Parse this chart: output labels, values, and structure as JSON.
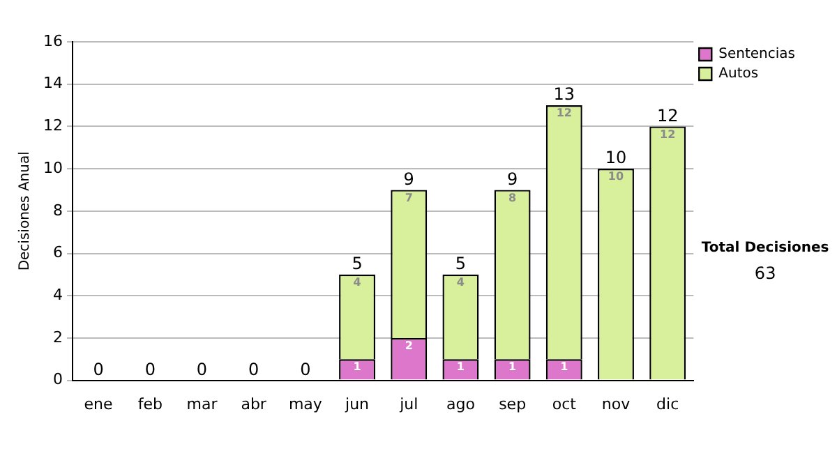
{
  "chart_data": {
    "type": "bar",
    "stacked": true,
    "ylabel": "Decisiones Anual",
    "categories": [
      "ene",
      "feb",
      "mar",
      "abr",
      "may",
      "jun",
      "jul",
      "ago",
      "sep",
      "oct",
      "nov",
      "dic"
    ],
    "series": [
      {
        "name": "Sentencias",
        "color": "#dd77cc",
        "values": [
          0,
          0,
          0,
          0,
          0,
          1,
          2,
          1,
          1,
          1,
          0,
          0
        ],
        "value_labels": [
          null,
          null,
          null,
          null,
          null,
          "1",
          "2",
          "1",
          "1",
          "1",
          null,
          null
        ]
      },
      {
        "name": "Autos",
        "color": "#d8ef9c",
        "values": [
          0,
          0,
          0,
          0,
          0,
          4,
          7,
          4,
          8,
          12,
          10,
          12
        ],
        "value_labels": [
          null,
          null,
          null,
          null,
          null,
          "4",
          "7",
          "4",
          "8",
          "12",
          "10",
          "12"
        ]
      }
    ],
    "totals": [
      "0",
      "0",
      "0",
      "0",
      "0",
      "5",
      "9",
      "5",
      "9",
      "13",
      "10",
      "12"
    ],
    "ylim": [
      0,
      16
    ],
    "yticks": [
      0,
      2,
      4,
      6,
      8,
      10,
      12,
      14,
      16
    ],
    "grid": "y",
    "legend": "right",
    "annotations": [
      "Total Decisiones",
      "63"
    ]
  }
}
